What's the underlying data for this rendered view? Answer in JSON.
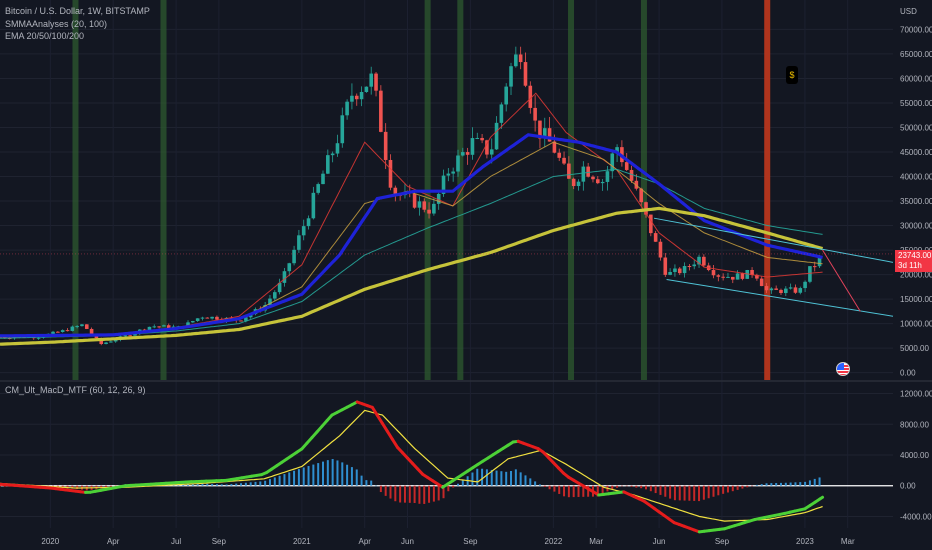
{
  "legend": {
    "symbol": "Bitcoin / U.S. Dollar, 1W, BITSTAMP",
    "smma": "SMMAAnalyses (20, 100)",
    "ema": "EMA 20/50/100/200",
    "macd": "CM_Ult_MacD_MTF (60, 12, 26, 9)"
  },
  "price_badge": {
    "price": "23743.00",
    "countdown": "3d 11h"
  },
  "currency": "USD",
  "event_marker": "$",
  "colors": {
    "background": "#131722",
    "up": "#26a69a",
    "down": "#ef5350",
    "ema20": "#e53935",
    "ema50": "#c8a040",
    "ema100": "#26a69a",
    "ema200": "#c6c33a",
    "smma": "#1e22d8",
    "macd_up": "#4cd137",
    "macd_down": "#e51c1c",
    "signal": "#f0e040",
    "hist_pos": "#2f8fd0",
    "hist_neg": "#c62828",
    "vline_green": "#2d5a2f",
    "vline_red": "#b7361d"
  },
  "chart_data": [
    {
      "type": "candlestick",
      "title": "Bitcoin / U.S. Dollar, 1W, BITSTAMP",
      "y_unit": "USD",
      "ylim": [
        -1500,
        76000
      ],
      "yticks": [
        0,
        5000,
        10000,
        15000,
        20000,
        25000,
        30000,
        35000,
        40000,
        45000,
        50000,
        55000,
        60000,
        65000,
        70000
      ],
      "ytick_labels": [
        "0.00",
        "5000.00",
        "10000.00",
        "15000.00",
        "20000.00",
        "25000.00",
        "30000.00",
        "35000.00",
        "40000.00",
        "45000.00",
        "50000.00",
        "55000.00",
        "60000.00",
        "65000.00",
        "70000.00"
      ],
      "x_labels": [
        {
          "t": 2020.0,
          "label": "2020"
        },
        {
          "t": 2020.25,
          "label": "Apr"
        },
        {
          "t": 2020.5,
          "label": "Jul"
        },
        {
          "t": 2020.67,
          "label": "Sep"
        },
        {
          "t": 2021.0,
          "label": "2021"
        },
        {
          "t": 2021.25,
          "label": "Apr"
        },
        {
          "t": 2021.42,
          "label": "Jun"
        },
        {
          "t": 2021.67,
          "label": "Sep"
        },
        {
          "t": 2022.0,
          "label": "2022"
        },
        {
          "t": 2022.17,
          "label": "Mar"
        },
        {
          "t": 2022.42,
          "label": "Jun"
        },
        {
          "t": 2022.67,
          "label": "Sep"
        },
        {
          "t": 2023.0,
          "label": "2023"
        },
        {
          "t": 2023.17,
          "label": "Mar"
        }
      ],
      "x_range": [
        2019.8,
        2023.35
      ],
      "last_price": 23743,
      "price_anchors": [
        [
          2019.8,
          7200
        ],
        [
          2019.95,
          7300
        ],
        [
          2020.05,
          8500
        ],
        [
          2020.13,
          9800
        ],
        [
          2020.2,
          5800
        ],
        [
          2020.3,
          7500
        ],
        [
          2020.4,
          9500
        ],
        [
          2020.52,
          9200
        ],
        [
          2020.6,
          11500
        ],
        [
          2020.75,
          10700
        ],
        [
          2020.85,
          13500
        ],
        [
          2020.92,
          18500
        ],
        [
          2021.0,
          29000
        ],
        [
          2021.08,
          40000
        ],
        [
          2021.13,
          46000
        ],
        [
          2021.2,
          57000
        ],
        [
          2021.28,
          60000
        ],
        [
          2021.36,
          37000
        ],
        [
          2021.44,
          35000
        ],
        [
          2021.52,
          33000
        ],
        [
          2021.58,
          41000
        ],
        [
          2021.68,
          47000
        ],
        [
          2021.75,
          45000
        ],
        [
          2021.82,
          61000
        ],
        [
          2021.87,
          66000
        ],
        [
          2021.93,
          50000
        ],
        [
          2022.0,
          46000
        ],
        [
          2022.07,
          38000
        ],
        [
          2022.12,
          42000
        ],
        [
          2022.2,
          39000
        ],
        [
          2022.25,
          46500
        ],
        [
          2022.32,
          38000
        ],
        [
          2022.38,
          30000
        ],
        [
          2022.45,
          20000
        ],
        [
          2022.52,
          21000
        ],
        [
          2022.58,
          23500
        ],
        [
          2022.65,
          20000
        ],
        [
          2022.72,
          19500
        ],
        [
          2022.8,
          20500
        ],
        [
          2022.85,
          16500
        ],
        [
          2022.92,
          16800
        ],
        [
          2022.98,
          16700
        ],
        [
          2023.02,
          21000
        ],
        [
          2023.07,
          23743
        ]
      ],
      "ema200": [
        [
          2019.8,
          5800
        ],
        [
          2020.0,
          6200
        ],
        [
          2020.5,
          7600
        ],
        [
          2020.75,
          8800
        ],
        [
          2021.0,
          11500
        ],
        [
          2021.25,
          17000
        ],
        [
          2021.5,
          21000
        ],
        [
          2021.75,
          24500
        ],
        [
          2022.0,
          29000
        ],
        [
          2022.25,
          32500
        ],
        [
          2022.42,
          33500
        ],
        [
          2022.6,
          32000
        ],
        [
          2022.85,
          28500
        ],
        [
          2023.07,
          25300
        ]
      ],
      "ema100": [
        [
          2019.8,
          7000
        ],
        [
          2020.25,
          7600
        ],
        [
          2020.5,
          8500
        ],
        [
          2020.75,
          10000
        ],
        [
          2021.0,
          14500
        ],
        [
          2021.25,
          24000
        ],
        [
          2021.5,
          29500
        ],
        [
          2021.75,
          34500
        ],
        [
          2022.0,
          40000
        ],
        [
          2022.25,
          41500
        ],
        [
          2022.42,
          38500
        ],
        [
          2022.6,
          33500
        ],
        [
          2022.85,
          30000
        ],
        [
          2023.07,
          28200
        ]
      ],
      "ema50": [
        [
          2019.8,
          7200
        ],
        [
          2020.25,
          7800
        ],
        [
          2020.5,
          9000
        ],
        [
          2020.75,
          10800
        ],
        [
          2021.0,
          17500
        ],
        [
          2021.25,
          34500
        ],
        [
          2021.42,
          37000
        ],
        [
          2021.6,
          34000
        ],
        [
          2021.75,
          40000
        ],
        [
          2022.0,
          47000
        ],
        [
          2022.2,
          43500
        ],
        [
          2022.42,
          34500
        ],
        [
          2022.6,
          28500
        ],
        [
          2022.85,
          23500
        ],
        [
          2023.07,
          22200
        ]
      ],
      "ema20": [
        [
          2019.8,
          7300
        ],
        [
          2020.25,
          7600
        ],
        [
          2020.5,
          9200
        ],
        [
          2020.75,
          11500
        ],
        [
          2021.0,
          22000
        ],
        [
          2021.25,
          47000
        ],
        [
          2021.42,
          38000
        ],
        [
          2021.6,
          34000
        ],
        [
          2021.75,
          48000
        ],
        [
          2021.93,
          57000
        ],
        [
          2022.05,
          49000
        ],
        [
          2022.25,
          41500
        ],
        [
          2022.42,
          28500
        ],
        [
          2022.6,
          21500
        ],
        [
          2022.85,
          19500
        ],
        [
          2023.07,
          20500
        ]
      ],
      "smma": [
        [
          2019.8,
          7500
        ],
        [
          2020.25,
          7700
        ],
        [
          2020.5,
          9000
        ],
        [
          2020.75,
          11000
        ],
        [
          2021.0,
          16000
        ],
        [
          2021.15,
          24000
        ],
        [
          2021.3,
          35500
        ],
        [
          2021.45,
          37000
        ],
        [
          2021.6,
          37000
        ],
        [
          2021.72,
          42000
        ],
        [
          2021.9,
          48500
        ],
        [
          2022.1,
          47000
        ],
        [
          2022.25,
          45000
        ],
        [
          2022.42,
          38500
        ],
        [
          2022.6,
          31000
        ],
        [
          2022.85,
          26000
        ],
        [
          2023.07,
          23500
        ]
      ],
      "trendlines": [
        {
          "from": [
            2022.4,
            31500
          ],
          "to": [
            2023.35,
            22500
          ]
        },
        {
          "from": [
            2022.45,
            19000
          ],
          "to": [
            2023.35,
            11500
          ]
        },
        {
          "from": [
            2023.07,
            25000
          ],
          "to": [
            2023.22,
            12500
          ]
        }
      ],
      "vlines_green": [
        2020.1,
        2020.45,
        2021.5,
        2021.63,
        2022.07,
        2022.36
      ],
      "vlines_red": [
        2022.85
      ],
      "hline": 24200
    },
    {
      "type": "line+histogram",
      "title": "CM_Ult_MacD_MTF (60, 12, 26, 9)",
      "ylim": [
        -5500,
        13500
      ],
      "yticks": [
        -4000,
        0,
        4000,
        8000,
        12000
      ],
      "ytick_labels": [
        "-4000.00",
        "0.00",
        "4000.00",
        "8000.00",
        "12000.00"
      ],
      "macd": [
        [
          2019.8,
          200
        ],
        [
          2020.0,
          -300
        ],
        [
          2020.15,
          -900
        ],
        [
          2020.3,
          0
        ],
        [
          2020.45,
          300
        ],
        [
          2020.55,
          500
        ],
        [
          2020.7,
          700
        ],
        [
          2020.85,
          1500
        ],
        [
          2021.0,
          4800
        ],
        [
          2021.12,
          9200
        ],
        [
          2021.22,
          10900
        ],
        [
          2021.28,
          10200
        ],
        [
          2021.38,
          5000
        ],
        [
          2021.48,
          1500
        ],
        [
          2021.56,
          -200
        ],
        [
          2021.64,
          1500
        ],
        [
          2021.72,
          3200
        ],
        [
          2021.85,
          5900
        ],
        [
          2021.95,
          4700
        ],
        [
          2022.05,
          1300
        ],
        [
          2022.18,
          -1200
        ],
        [
          2022.28,
          -800
        ],
        [
          2022.36,
          -2000
        ],
        [
          2022.48,
          -4800
        ],
        [
          2022.58,
          -6000
        ],
        [
          2022.68,
          -5600
        ],
        [
          2022.8,
          -4400
        ],
        [
          2022.92,
          -3600
        ],
        [
          2023.0,
          -3000
        ],
        [
          2023.07,
          -1500
        ]
      ],
      "signal": [
        [
          2019.8,
          300
        ],
        [
          2020.1,
          -300
        ],
        [
          2020.3,
          -200
        ],
        [
          2020.6,
          300
        ],
        [
          2020.85,
          900
        ],
        [
          2021.0,
          2500
        ],
        [
          2021.15,
          6500
        ],
        [
          2021.25,
          9800
        ],
        [
          2021.32,
          9200
        ],
        [
          2021.45,
          4800
        ],
        [
          2021.58,
          1000
        ],
        [
          2021.7,
          500
        ],
        [
          2021.82,
          3500
        ],
        [
          2021.95,
          4600
        ],
        [
          2022.05,
          2800
        ],
        [
          2022.2,
          -200
        ],
        [
          2022.32,
          -1200
        ],
        [
          2022.45,
          -2600
        ],
        [
          2022.58,
          -4000
        ],
        [
          2022.68,
          -4600
        ],
        [
          2022.85,
          -4400
        ],
        [
          2023.0,
          -3500
        ],
        [
          2023.07,
          -2700
        ]
      ]
    }
  ]
}
